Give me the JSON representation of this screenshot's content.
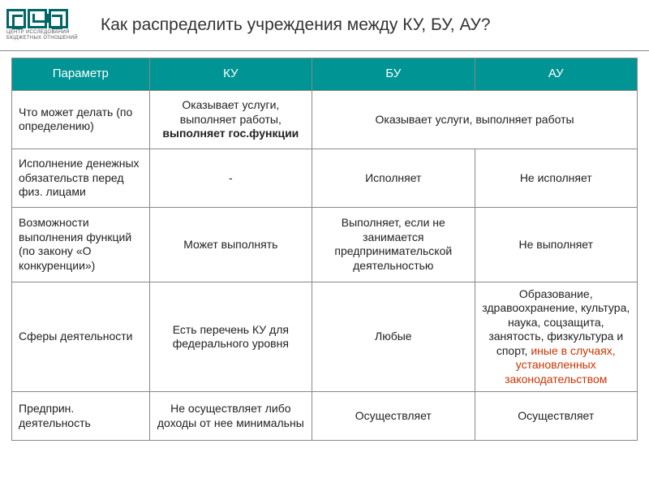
{
  "title": "Как распределить учреждения между КУ, БУ, АУ?",
  "logo_caption_1": "ЦЕНТР ИССЛЕДОВАНИЯ",
  "logo_caption_2": "БЮДЖЕТНЫХ ОТНОШЕНИЙ",
  "columns": {
    "param": "Параметр",
    "ku": "КУ",
    "bu": "БУ",
    "au": "АУ"
  },
  "rows": {
    "r1": {
      "param": "Что может делать (по определению)",
      "ku_a": "Оказывает услуги, выполняет работы, ",
      "ku_b": "выполняет гос.функции",
      "bu_au": "Оказывает услуги, выполняет работы"
    },
    "r2": {
      "param": "Исполнение денежных обязательств перед физ. лицами",
      "ku": "-",
      "bu": "Исполняет",
      "au": "Не исполняет"
    },
    "r3": {
      "param": "Возможности выполнения функций (по закону «О конкуренции»)",
      "ku": "Может выполнять",
      "bu": "Выполняет, если не занимается предпринимательской деятельностью",
      "au": "Не выполняет"
    },
    "r4": {
      "param": "Сферы деятельности",
      "ku": "Есть перечень КУ для федерального уровня",
      "bu": "Любые",
      "au_a": "Образование, здравоохранение, культура, наука, соцзащита, занятость, физкультура и спорт, ",
      "au_b": "иные в случаях, установленных законодательством"
    },
    "r5": {
      "param": "Предприн. деятельность",
      "ku": "Не осуществляет либо доходы от нее минимальны",
      "bu": "Осуществляет",
      "au": "Осуществляет"
    }
  },
  "colors": {
    "header_bg": "#009494",
    "header_fg": "#ffffff",
    "border": "#888888",
    "text": "#222222",
    "red": "#cc3300",
    "bg": "#ffffff",
    "logo": "#006666"
  }
}
